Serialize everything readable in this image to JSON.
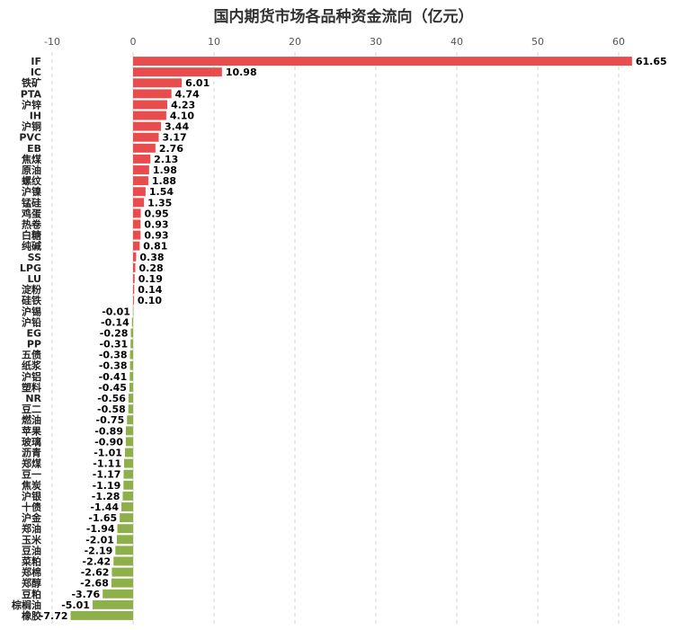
{
  "chart_data": {
    "type": "bar",
    "orientation": "horizontal",
    "title": "国内期货市场各品种资金流向（亿元）",
    "xlim": [
      -10,
      62
    ],
    "xticks": [
      -10,
      0,
      10,
      20,
      30,
      40,
      50,
      60
    ],
    "grid": true,
    "colors": {
      "positive": "#e84c4c",
      "negative": "#8db04a"
    },
    "categories": [
      "IF",
      "IC",
      "铁矿",
      "PTA",
      "沪锌",
      "IH",
      "沪铜",
      "PVC",
      "EB",
      "焦煤",
      "原油",
      "螺纹",
      "沪镍",
      "锰硅",
      "鸡蛋",
      "热卷",
      "白糖",
      "纯碱",
      "SS",
      "LPG",
      "LU",
      "淀粉",
      "硅铁",
      "沪锡",
      "沪铅",
      "EG",
      "PP",
      "五债",
      "纸浆",
      "沪铝",
      "塑料",
      "NR",
      "豆二",
      "燃油",
      "苹果",
      "玻璃",
      "沥青",
      "郑煤",
      "豆一",
      "焦炭",
      "沪银",
      "十债",
      "沪金",
      "郑油",
      "玉米",
      "豆油",
      "菜粕",
      "郑棉",
      "郑醇",
      "豆粕",
      "棕榈油",
      "橡胶"
    ],
    "values": [
      61.65,
      10.98,
      6.01,
      4.74,
      4.23,
      4.1,
      3.44,
      3.17,
      2.76,
      2.13,
      1.98,
      1.88,
      1.54,
      1.35,
      0.95,
      0.93,
      0.93,
      0.81,
      0.38,
      0.28,
      0.19,
      0.14,
      0.1,
      -0.01,
      -0.14,
      -0.28,
      -0.31,
      -0.38,
      -0.38,
      -0.41,
      -0.45,
      -0.56,
      -0.58,
      -0.75,
      -0.89,
      -0.9,
      -1.01,
      -1.11,
      -1.17,
      -1.19,
      -1.28,
      -1.44,
      -1.65,
      -1.94,
      -2.01,
      -2.19,
      -2.42,
      -2.62,
      -2.68,
      -3.76,
      -5.01,
      -7.72
    ]
  }
}
